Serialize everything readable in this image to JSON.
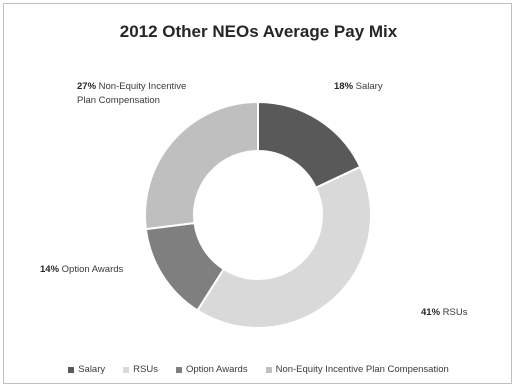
{
  "chart_data": {
    "type": "pie",
    "donut": true,
    "title": "2012 Other NEOs Average Pay Mix",
    "slices": [
      {
        "name": "Salary",
        "value": 18,
        "pct_text": "18%",
        "label_text": "Salary",
        "color": "#595959"
      },
      {
        "name": "RSUs",
        "value": 41,
        "pct_text": "41%",
        "label_text": "RSUs",
        "color": "#d9d9d9"
      },
      {
        "name": "Option Awards",
        "value": 14,
        "pct_text": "14%",
        "label_text": "Option Awards",
        "color": "#7f7f7f"
      },
      {
        "name": "Non-Equity Incentive Plan Compensation",
        "value": 27,
        "pct_text": "27%",
        "label_text": "Non-Equity Incentive Plan Compensation",
        "color": "#bfbfbf"
      }
    ],
    "legend": [
      "Salary",
      "RSUs",
      "Option Awards",
      "Non-Equity Incentive Plan Compensation"
    ],
    "legend_position": "bottom"
  }
}
